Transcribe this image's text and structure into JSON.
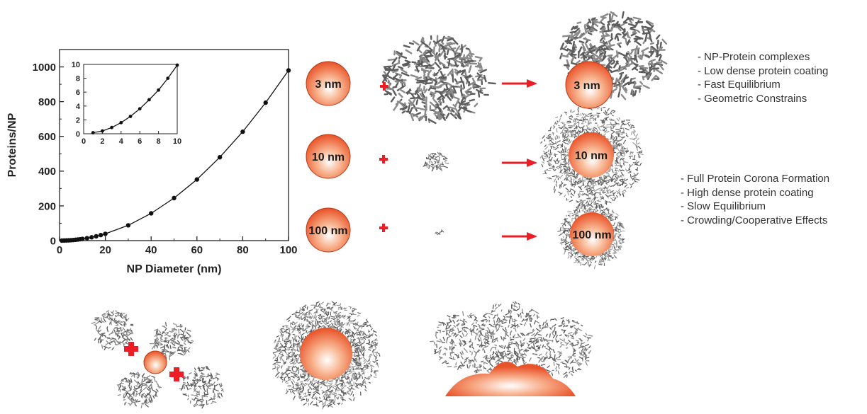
{
  "chart_data": [
    {
      "type": "scatter",
      "xlabel": "NP Diameter (nm)",
      "ylabel": "Proteins/NP",
      "xlim": [
        0,
        100
      ],
      "ylim": [
        0,
        1100
      ],
      "xticks": [
        "0",
        "20",
        "40",
        "60",
        "80",
        "100"
      ],
      "yticks": [
        "0",
        "200",
        "400",
        "600",
        "800",
        "1000"
      ],
      "fit_line": true,
      "x": [
        1,
        2,
        3,
        4,
        5,
        6,
        7,
        8,
        9,
        10,
        12,
        14,
        16,
        18,
        20,
        30,
        40,
        50,
        60,
        70,
        80,
        90,
        100
      ],
      "y": [
        0.2,
        0.5,
        1,
        1.5,
        2.4,
        3.5,
        4.8,
        6.3,
        8,
        10,
        14,
        19,
        25,
        32,
        39,
        88,
        157,
        245,
        352,
        480,
        627,
        794,
        980
      ]
    },
    {
      "type": "scatter",
      "xlim": [
        0,
        10
      ],
      "ylim": [
        0,
        10
      ],
      "xticks": [
        "0",
        "2",
        "4",
        "6",
        "8",
        "10"
      ],
      "yticks": [
        "0",
        "2",
        "4",
        "6",
        "8",
        "10"
      ],
      "fit_line": true,
      "x": [
        1,
        2,
        3,
        4,
        5,
        6,
        7,
        8,
        9,
        10
      ],
      "y": [
        0.15,
        0.4,
        0.9,
        1.6,
        2.5,
        3.6,
        4.9,
        6.3,
        8.0,
        9.9
      ]
    }
  ],
  "nanoparticles": [
    {
      "label": "3 nm"
    },
    {
      "label": "10 nm"
    },
    {
      "label": "100 nm"
    }
  ],
  "notes_top": [
    "- NP-Protein complexes",
    "- Low dense protein coating",
    "- Fast Equilibrium",
    "- Geometric Constrains"
  ],
  "notes_bottom": [
    "- Full Protein Corona Formation",
    "- High dense protein coating",
    "- Slow Equilibrium",
    "- Crowding/Cooperative Effects"
  ],
  "colors": {
    "np_core": "#ffffff",
    "np_mid": "#f6b08a",
    "np_edge": "#e8542a",
    "arrow": "#ee1c24",
    "protein": "#6e6e6e"
  }
}
